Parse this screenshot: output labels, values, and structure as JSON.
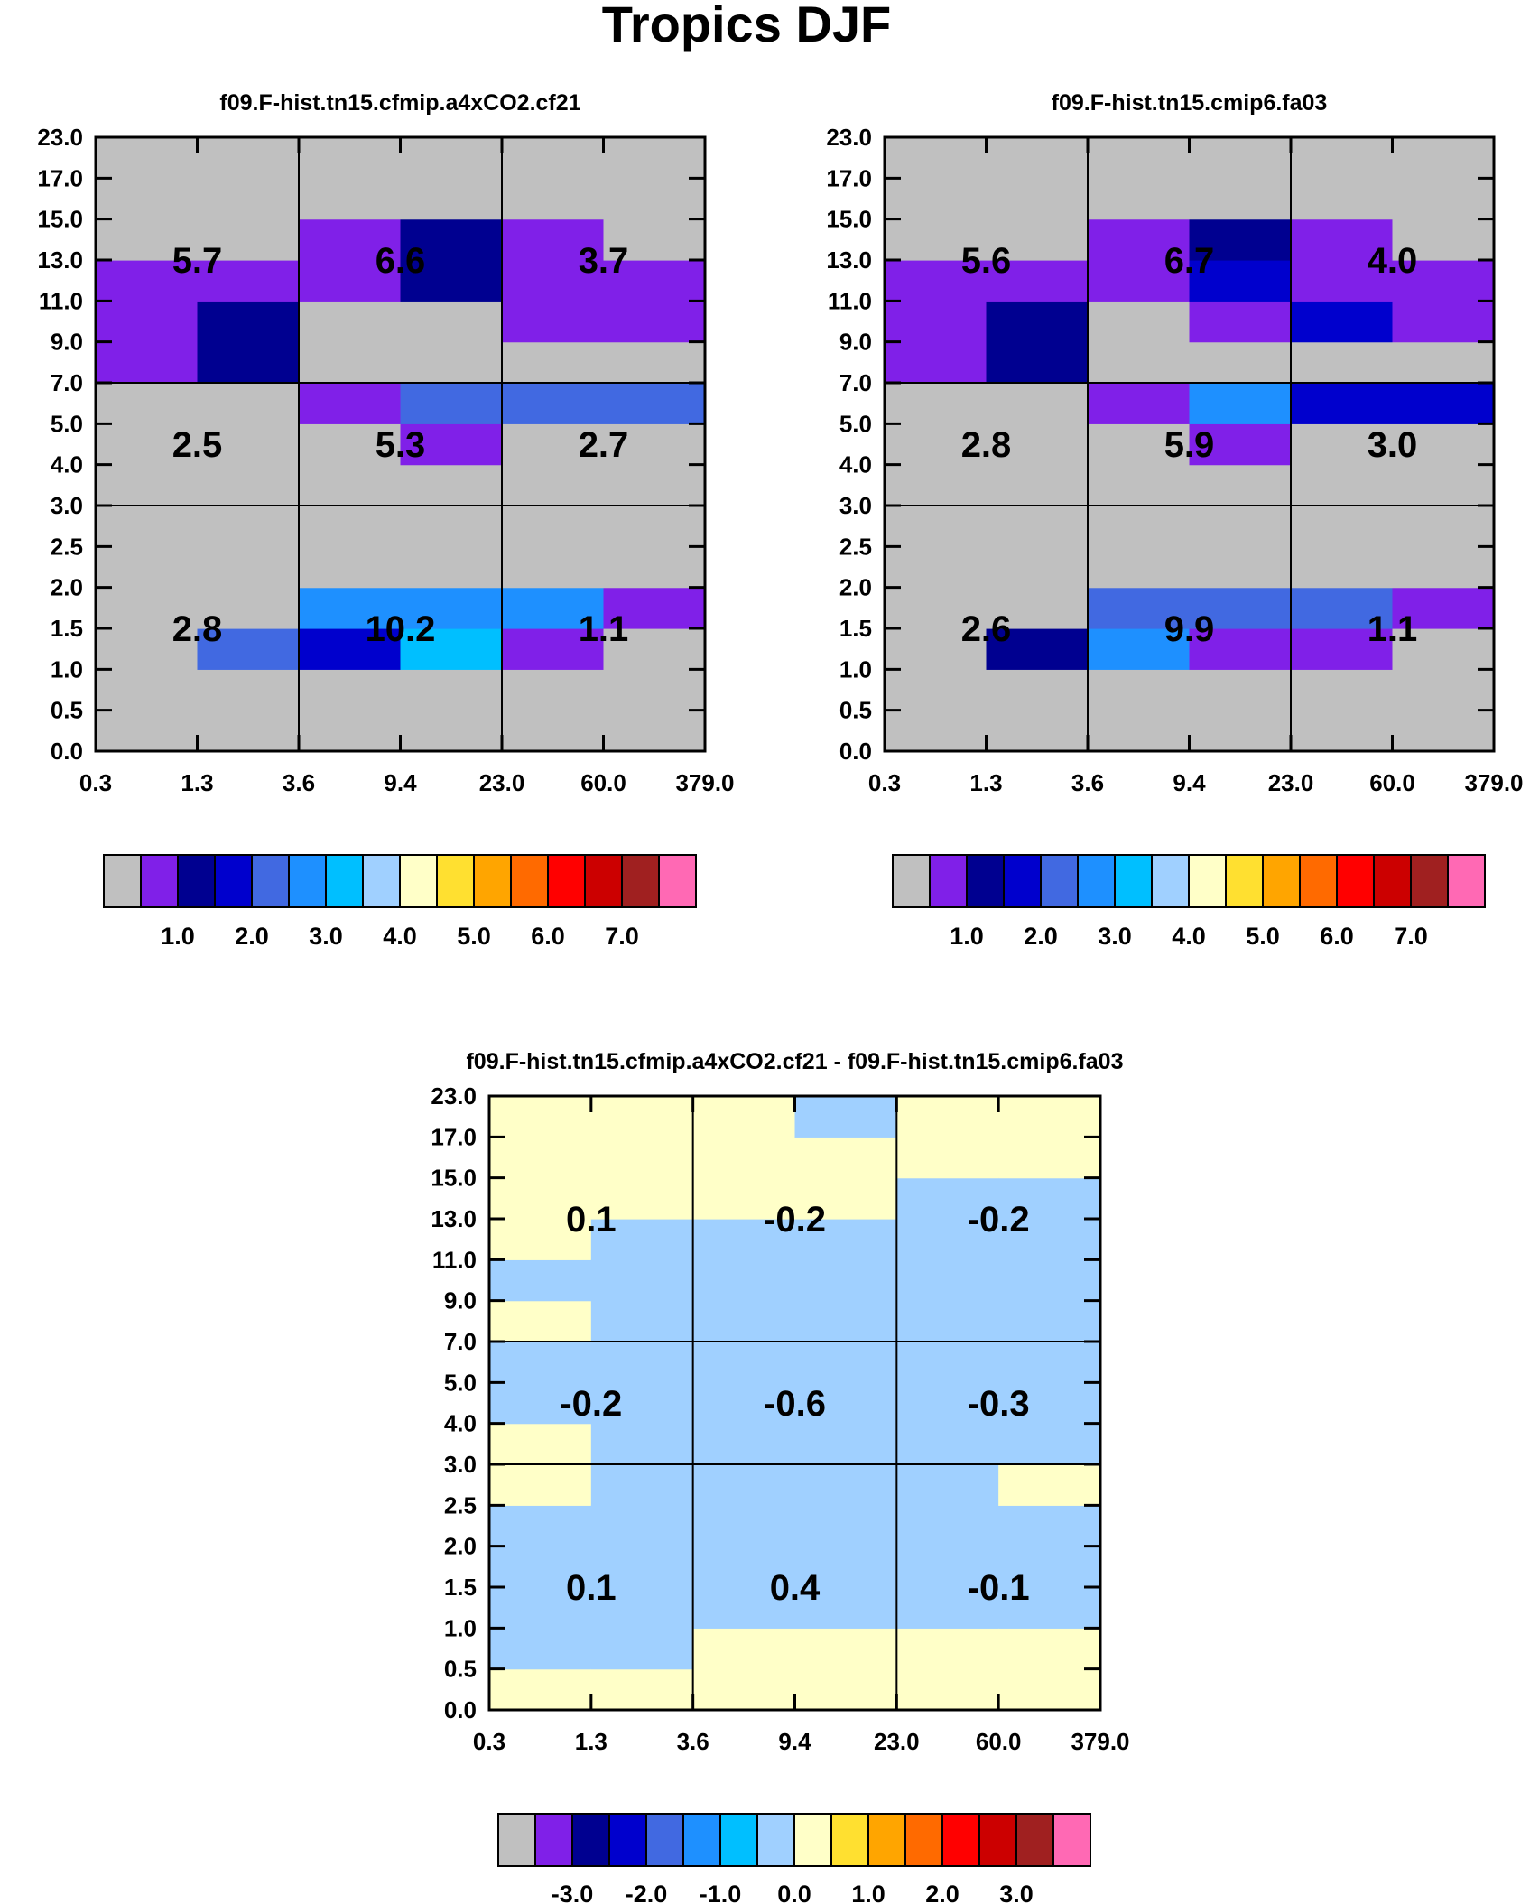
{
  "title": "Tropics DJF",
  "chart_data": [
    {
      "type": "heatmap",
      "title": "f09.F-hist.tn15.cfmip.a4xCO2.cf21",
      "x_ticks": [
        "0.3",
        "1.3",
        "3.6",
        "9.4",
        "23.0",
        "60.0",
        "379.0"
      ],
      "y_ticks": [
        "0.0",
        "0.5",
        "1.0",
        "1.5",
        "2.0",
        "2.5",
        "3.0",
        "4.0",
        "5.0",
        "7.0",
        "9.0",
        "11.0",
        "13.0",
        "15.0",
        "17.0",
        "23.0"
      ],
      "cells": [
        [
          0,
          0,
          0,
          0,
          0,
          0,
          0,
          0,
          0,
          1,
          1,
          1,
          0,
          0,
          0
        ],
        [
          0,
          0,
          4,
          0,
          0,
          0,
          0,
          0,
          0,
          2,
          2,
          1,
          0,
          0,
          0
        ],
        [
          0,
          0,
          3,
          5,
          0,
          0,
          0,
          0,
          1,
          0,
          0,
          1,
          1,
          0,
          0
        ],
        [
          0,
          0,
          6,
          5,
          0,
          0,
          0,
          1,
          4,
          0,
          0,
          2,
          2,
          0,
          0
        ],
        [
          0,
          0,
          1,
          5,
          0,
          0,
          0,
          0,
          4,
          0,
          1,
          1,
          1,
          0,
          0
        ],
        [
          0,
          0,
          0,
          1,
          0,
          0,
          0,
          0,
          4,
          0,
          1,
          1,
          0,
          0,
          0
        ]
      ],
      "box_values": [
        [
          "2.8",
          "10.2",
          "1.1"
        ],
        [
          "2.5",
          "5.3",
          "2.7"
        ],
        [
          "5.7",
          "6.6",
          "3.7"
        ]
      ],
      "colorbar": {
        "colors": [
          "#c0c0c0",
          "#8020e8",
          "#000090",
          "#0000cd",
          "#4169e1",
          "#1e90ff",
          "#00bfff",
          "#a0d0ff",
          "#ffffc8",
          "#ffe030",
          "#ffa500",
          "#ff6a00",
          "#ff0000",
          "#cc0000",
          "#a02020",
          "#ff69b4"
        ],
        "labels": [
          "1.0",
          "2.0",
          "3.0",
          "4.0",
          "5.0",
          "6.0",
          "7.0"
        ]
      }
    },
    {
      "type": "heatmap",
      "title": "f09.F-hist.tn15.cmip6.fa03",
      "x_ticks": [
        "0.3",
        "1.3",
        "3.6",
        "9.4",
        "23.0",
        "60.0",
        "379.0"
      ],
      "y_ticks": [
        "0.0",
        "0.5",
        "1.0",
        "1.5",
        "2.0",
        "2.5",
        "3.0",
        "4.0",
        "5.0",
        "7.0",
        "9.0",
        "11.0",
        "13.0",
        "15.0",
        "17.0",
        "23.0"
      ],
      "cells": [
        [
          0,
          0,
          0,
          0,
          0,
          0,
          0,
          0,
          0,
          1,
          1,
          1,
          0,
          0,
          0
        ],
        [
          0,
          0,
          2,
          0,
          0,
          0,
          0,
          0,
          0,
          2,
          2,
          1,
          0,
          0,
          0
        ],
        [
          0,
          0,
          5,
          4,
          0,
          0,
          0,
          0,
          1,
          0,
          0,
          1,
          1,
          0,
          0
        ],
        [
          0,
          0,
          1,
          4,
          0,
          0,
          0,
          1,
          5,
          0,
          1,
          3,
          2,
          0,
          0
        ],
        [
          0,
          0,
          1,
          4,
          0,
          0,
          0,
          0,
          3,
          0,
          3,
          1,
          1,
          0,
          0
        ],
        [
          0,
          0,
          0,
          1,
          0,
          0,
          0,
          0,
          3,
          0,
          1,
          1,
          0,
          0,
          0
        ]
      ],
      "box_values": [
        [
          "2.6",
          "9.9",
          "1.1"
        ],
        [
          "2.8",
          "5.9",
          "3.0"
        ],
        [
          "5.6",
          "6.7",
          "4.0"
        ]
      ],
      "colorbar": {
        "colors": [
          "#c0c0c0",
          "#8020e8",
          "#000090",
          "#0000cd",
          "#4169e1",
          "#1e90ff",
          "#00bfff",
          "#a0d0ff",
          "#ffffc8",
          "#ffe030",
          "#ffa500",
          "#ff6a00",
          "#ff0000",
          "#cc0000",
          "#a02020",
          "#ff69b4"
        ],
        "labels": [
          "1.0",
          "2.0",
          "3.0",
          "4.0",
          "5.0",
          "6.0",
          "7.0"
        ]
      }
    },
    {
      "type": "heatmap",
      "title": "f09.F-hist.tn15.cfmip.a4xCO2.cf21 - f09.F-hist.tn15.cmip6.fa03",
      "x_ticks": [
        "0.3",
        "1.3",
        "3.6",
        "9.4",
        "23.0",
        "60.0",
        "379.0"
      ],
      "y_ticks": [
        "0.0",
        "0.5",
        "1.0",
        "1.5",
        "2.0",
        "2.5",
        "3.0",
        "4.0",
        "5.0",
        "7.0",
        "9.0",
        "11.0",
        "13.0",
        "15.0",
        "17.0",
        "23.0"
      ],
      "cells": [
        [
          8,
          7,
          7,
          7,
          7,
          8,
          8,
          7,
          7,
          8,
          7,
          8,
          8,
          8,
          8
        ],
        [
          8,
          7,
          7,
          7,
          7,
          7,
          7,
          7,
          7,
          7,
          7,
          7,
          8,
          8,
          8
        ],
        [
          8,
          8,
          7,
          7,
          7,
          7,
          7,
          7,
          7,
          7,
          7,
          7,
          8,
          8,
          8
        ],
        [
          8,
          8,
          7,
          7,
          7,
          7,
          7,
          7,
          7,
          7,
          7,
          7,
          8,
          8,
          7
        ],
        [
          8,
          8,
          7,
          7,
          7,
          7,
          7,
          7,
          7,
          7,
          7,
          7,
          7,
          8,
          8
        ],
        [
          8,
          8,
          7,
          7,
          7,
          8,
          7,
          7,
          7,
          7,
          7,
          7,
          7,
          8,
          8
        ]
      ],
      "box_values": [
        [
          "0.1",
          "0.4",
          "-0.1"
        ],
        [
          "-0.2",
          "-0.6",
          "-0.3"
        ],
        [
          "0.1",
          "-0.2",
          "-0.2"
        ]
      ],
      "colorbar": {
        "colors": [
          "#c0c0c0",
          "#8020e8",
          "#000090",
          "#0000cd",
          "#4169e1",
          "#1e90ff",
          "#00bfff",
          "#a0d0ff",
          "#ffffc8",
          "#ffe030",
          "#ffa500",
          "#ff6a00",
          "#ff0000",
          "#cc0000",
          "#a02020",
          "#ff69b4"
        ],
        "labels": [
          "-3.0",
          "-2.0",
          "-1.0",
          "0.0",
          "1.0",
          "2.0",
          "3.0"
        ]
      }
    }
  ]
}
